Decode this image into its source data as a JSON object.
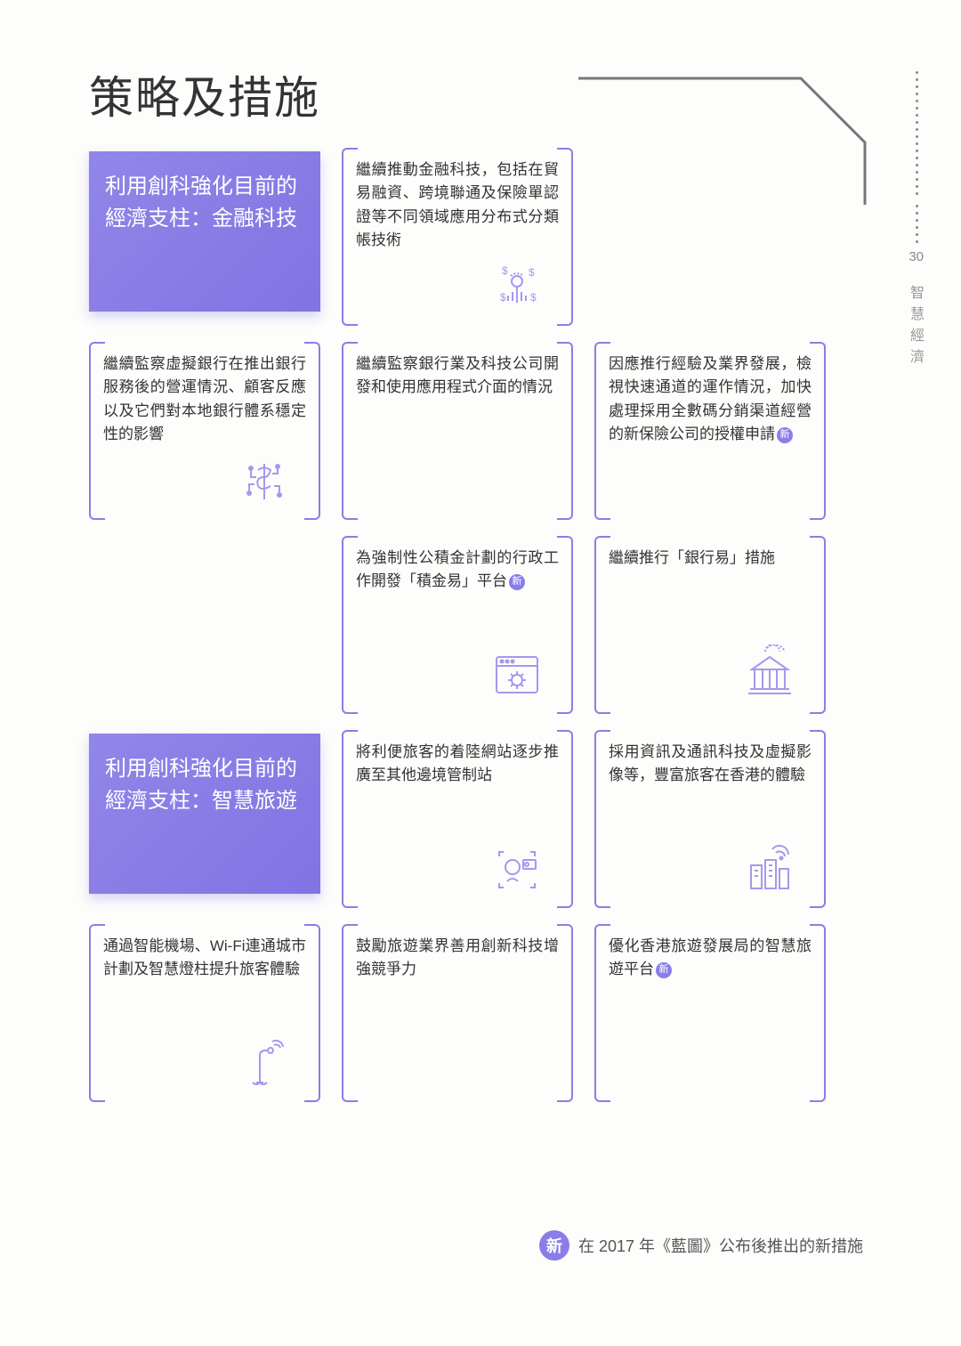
{
  "page": {
    "title": "策略及措施",
    "number": "30",
    "side_label": "智慧經濟"
  },
  "sections": [
    {
      "header": "利用創科強化目前的經濟支柱：金融科技",
      "row": 0,
      "items": [
        {
          "row": 0,
          "col": 1,
          "text": "繼續推動金融科技，包括在貿易融資、跨境聯通及保險單認證等不同領域應用分布式分類帳技術",
          "icon": "touch"
        },
        {
          "row": 1,
          "col": 0,
          "text": "繼續監察虛擬銀行在推出銀行服務後的營運情況、顧客反應以及它們對本地銀行體系穩定性的影響",
          "icon": "dollar-chip"
        },
        {
          "row": 1,
          "col": 1,
          "text": "繼續監察銀行業及科技公司開發和使用應用程式介面的情況"
        },
        {
          "row": 1,
          "col": 2,
          "text": "因應推行經驗及業界發展，檢視快速通道的運作情況，加快處理採用全數碼分銷渠道經營的新保險公司的授權申請",
          "badge": true
        },
        {
          "row": 2,
          "col": 1,
          "text": "為強制性公積金計劃的行政工作開發「積金易」平台",
          "badge": true,
          "icon": "browser-gear"
        },
        {
          "row": 2,
          "col": 2,
          "text": "繼續推行「銀行易」措施",
          "icon": "bank"
        }
      ]
    },
    {
      "header": "利用創科強化目前的經濟支柱：智慧旅遊",
      "row": 3,
      "items": [
        {
          "row": 3,
          "col": 1,
          "text": "將利便旅客的着陸網站逐步推廣至其他邊境管制站",
          "icon": "face-id"
        },
        {
          "row": 3,
          "col": 2,
          "text": "採用資訊及通訊科技及虛擬影像等，豐富旅客在香港的體驗",
          "icon": "city-wifi"
        },
        {
          "row": 4,
          "col": 0,
          "text": "通過智能機場、Wi-Fi連通城市計劃及智慧燈柱提升旅客體驗",
          "icon": "lamp-wifi"
        },
        {
          "row": 4,
          "col": 1,
          "text": "鼓勵旅遊業界善用創新科技增強競爭力"
        },
        {
          "row": 4,
          "col": 2,
          "text": "優化香港旅遊發展局的智慧旅遊平台",
          "badge": true
        }
      ]
    }
  ],
  "footer": {
    "badge": "新",
    "text": "在 2017 年《藍圖》公布後推出的新措施"
  },
  "colors": {
    "accent": "#8b7de8",
    "icon": "#a598ee"
  }
}
